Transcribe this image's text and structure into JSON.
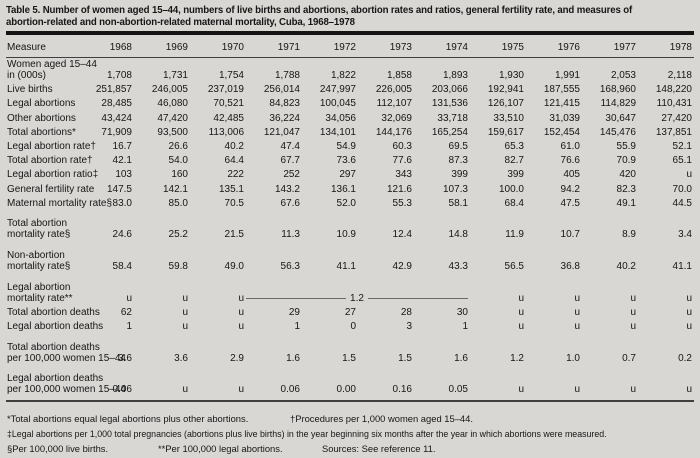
{
  "title": {
    "line1": "Table 5. Number of women aged 15–44, numbers of live births and abortions, abortion rates and ratios, general fertility rate, and measures of",
    "line2": "abortion-related and non-abortion-related maternal mortality, Cuba, 1968–1978"
  },
  "table": {
    "measure_header": "Measure",
    "years": [
      "1968",
      "1969",
      "1970",
      "1971",
      "1972",
      "1973",
      "1974",
      "1975",
      "1976",
      "1977",
      "1978"
    ],
    "rows": [
      {
        "label": [
          "Women aged 15–44",
          "in (000s)"
        ],
        "gap": false,
        "values": [
          "1,708",
          "1,731",
          "1,754",
          "1,788",
          "1,822",
          "1,858",
          "1,893",
          "1,930",
          "1,991",
          "2,053",
          "2,118"
        ]
      },
      {
        "label": [
          "Live births"
        ],
        "gap": false,
        "values": [
          "251,857",
          "246,005",
          "237,019",
          "256,014",
          "247,997",
          "226,005",
          "203,066",
          "192,941",
          "187,555",
          "168,960",
          "148,220"
        ]
      },
      {
        "label": [
          "Legal abortions"
        ],
        "gap": false,
        "values": [
          "28,485",
          "46,080",
          "70,521",
          "84,823",
          "100,045",
          "112,107",
          "131,536",
          "126,107",
          "121,415",
          "114,829",
          "110,431"
        ]
      },
      {
        "label": [
          "Other abortions"
        ],
        "gap": false,
        "values": [
          "43,424",
          "47,420",
          "42,485",
          "36,224",
          "34,056",
          "32,069",
          "33,718",
          "33,510",
          "31,039",
          "30,647",
          "27,420"
        ]
      },
      {
        "label": [
          "Total abortions*"
        ],
        "gap": false,
        "values": [
          "71,909",
          "93,500",
          "113,006",
          "121,047",
          "134,101",
          "144,176",
          "165,254",
          "159,617",
          "152,454",
          "145,476",
          "137,851"
        ]
      },
      {
        "label": [
          "Legal abortion rate†"
        ],
        "gap": false,
        "values": [
          "16.7",
          "26.6",
          "40.2",
          "47.4",
          "54.9",
          "60.3",
          "69.5",
          "65.3",
          "61.0",
          "55.9",
          "52.1"
        ]
      },
      {
        "label": [
          "Total abortion rate†"
        ],
        "gap": false,
        "values": [
          "42.1",
          "54.0",
          "64.4",
          "67.7",
          "73.6",
          "77.6",
          "87.3",
          "82.7",
          "76.6",
          "70.9",
          "65.1"
        ]
      },
      {
        "label": [
          "Legal abortion ratio‡"
        ],
        "gap": false,
        "values": [
          "103",
          "160",
          "222",
          "252",
          "297",
          "343",
          "399",
          "399",
          "405",
          "420",
          "u"
        ]
      },
      {
        "label": [
          "General fertility rate"
        ],
        "gap": false,
        "values": [
          "147.5",
          "142.1",
          "135.1",
          "143.2",
          "136.1",
          "121.6",
          "107.3",
          "100.0",
          "94.2",
          "82.3",
          "70.0"
        ]
      },
      {
        "label": [
          "Maternal mortality rate§"
        ],
        "gap": false,
        "values": [
          "83.0",
          "85.0",
          "70.5",
          "67.6",
          "52.0",
          "55.3",
          "58.1",
          "68.4",
          "47.5",
          "49.1",
          "44.5"
        ]
      },
      {
        "label": [
          "Total abortion",
          "mortality rate§"
        ],
        "gap": true,
        "values": [
          "24.6",
          "25.2",
          "21.5",
          "11.3",
          "10.9",
          "12.4",
          "14.8",
          "11.9",
          "10.7",
          "8.9",
          "3.4"
        ]
      },
      {
        "label": [
          "Non-abortion",
          "mortality rate§"
        ],
        "gap": true,
        "values": [
          "58.4",
          "59.8",
          "49.0",
          "56.3",
          "41.1",
          "42.9",
          "43.3",
          "56.5",
          "36.8",
          "40.2",
          "41.1"
        ]
      },
      {
        "label": [
          "Legal abortion",
          "mortality rate**"
        ],
        "gap": true,
        "values": [
          "u",
          "u",
          "u",
          {
            "colspan": 4,
            "value": "1.2",
            "rule": true
          },
          "u",
          "u",
          "u",
          "u"
        ]
      },
      {
        "label": [
          "Total abortion deaths"
        ],
        "gap": false,
        "values": [
          "62",
          "u",
          "u",
          "29",
          "27",
          "28",
          "30",
          "u",
          "u",
          "u",
          "u"
        ]
      },
      {
        "label": [
          "Legal abortion deaths"
        ],
        "gap": false,
        "values": [
          "1",
          "u",
          "u",
          "1",
          "0",
          "3",
          "1",
          "u",
          "u",
          "u",
          "u"
        ]
      },
      {
        "label": [
          "Total abortion deaths",
          "per 100,000 women 15–44"
        ],
        "gap": true,
        "values": [
          "3.6",
          "3.6",
          "2.9",
          "1.6",
          "1.5",
          "1.5",
          "1.6",
          "1.2",
          "1.0",
          "0.7",
          "0.2"
        ]
      },
      {
        "label": [
          "Legal abortion deaths",
          "per 100,000 women 15–44"
        ],
        "gap": true,
        "values": [
          "0.06",
          "u",
          "u",
          "0.06",
          "0.00",
          "0.16",
          "0.05",
          "u",
          "u",
          "u",
          "u"
        ]
      }
    ]
  },
  "footnotes": {
    "line1a": "*Total abortions equal legal abortions plus other abortions.",
    "line1b": "†Procedures per 1,000 women aged 15–44.",
    "line2": "‡Legal abortions per 1,000 total pregnancies (abortions plus live births) in the year beginning six months after the year in which abortions were measured.",
    "line3a": "§Per 100,000 live births.",
    "line3b": "**Per 100,000 legal abortions.",
    "line3c": "Sources: See reference 11."
  },
  "colors": {
    "background": "#d8d7d4",
    "text": "#161616",
    "rule_dark": "#141414",
    "rule_mid": "#3f3f3f",
    "rule_thin": "#6a6a6a"
  }
}
